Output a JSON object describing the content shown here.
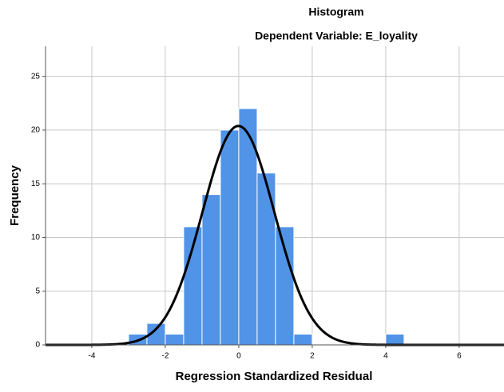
{
  "chart_data": {
    "type": "histogram",
    "title": "Histogram",
    "subtitle": "Dependent Variable: E_loyality",
    "x_label": "Regression Standardized Residual",
    "y_label": "Frequency",
    "bins": [
      -3,
      -2.5,
      -2,
      -1.5,
      -1,
      -0.5,
      0,
      0.5,
      1,
      1.5,
      2,
      2.5,
      3,
      3.5,
      4,
      4.5
    ],
    "values": [
      1,
      2,
      1,
      11,
      14,
      20,
      22,
      16,
      11,
      1,
      0,
      0,
      0,
      0,
      1
    ],
    "color": "#5193e6",
    "curve_color": "#000000",
    "xlim": [
      -5.26,
      7.22
    ],
    "xticks": [
      -4,
      -2,
      0,
      2,
      4,
      6
    ],
    "ylim": [
      0,
      27.8
    ],
    "yticks": [
      0,
      5,
      10,
      15,
      20,
      25
    ],
    "grid": true
  }
}
